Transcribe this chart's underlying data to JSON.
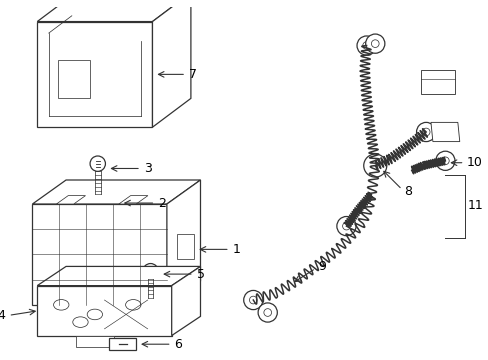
{
  "background_color": "#ffffff",
  "line_color": "#333333",
  "label_color": "#000000"
}
